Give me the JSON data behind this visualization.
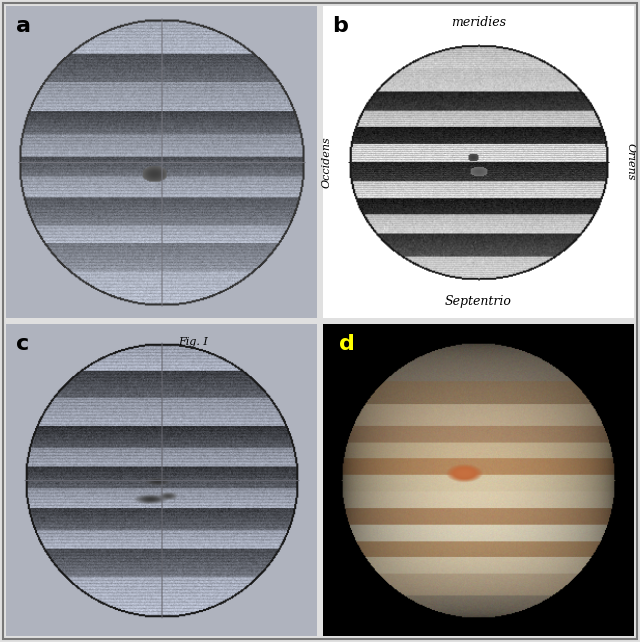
{
  "figure_bg": "#e0e0e0",
  "panel_bg_a": "#c8ccd4",
  "panel_bg_b": "#ffffff",
  "panel_bg_c": "#c8ccd4",
  "panel_bg_d": "#000000",
  "label_a": "a",
  "label_b": "b",
  "label_c": "c",
  "label_d": "d",
  "label_d_color": "#ffff00",
  "figsize": [
    6.4,
    6.42
  ],
  "dpi": 100,
  "text_b_top": "meridies",
  "text_b_bottom": "Septentrio",
  "text_b_left": "Occidens",
  "text_b_right": "Oriens",
  "text_c_top": "Fig. I"
}
